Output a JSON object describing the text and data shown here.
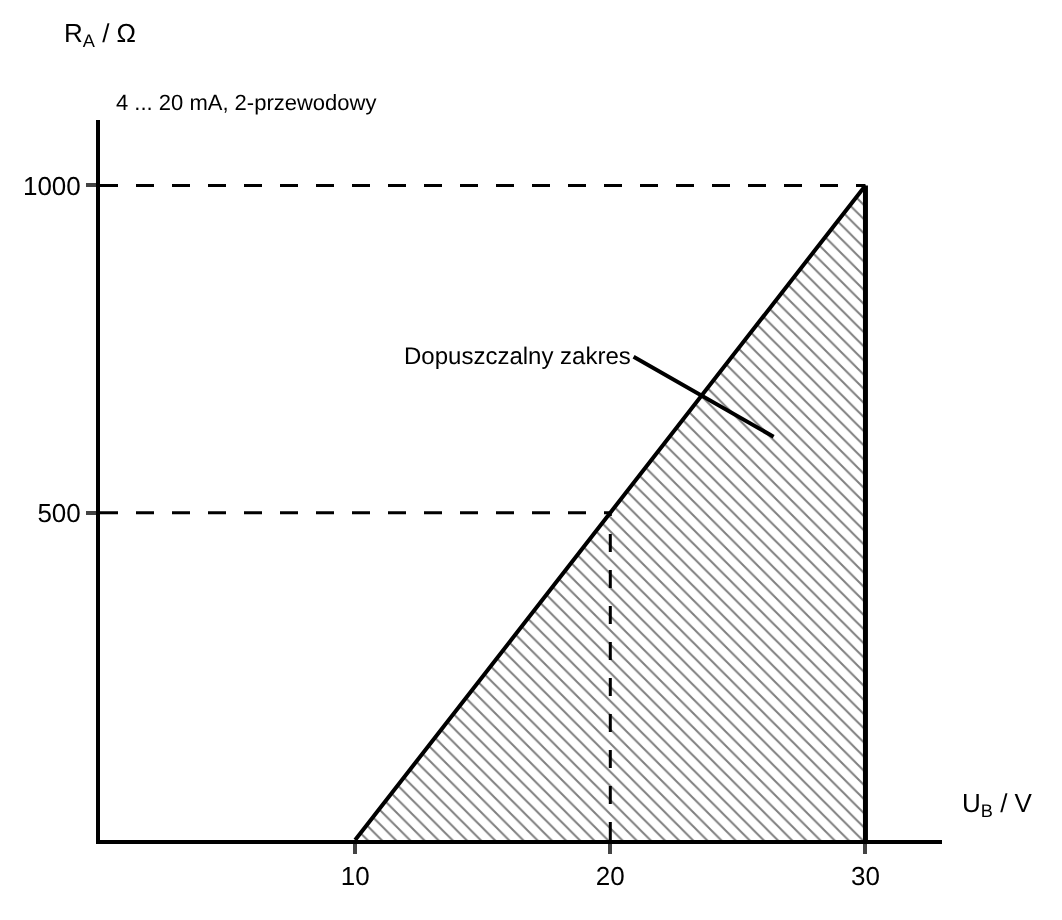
{
  "chart_data": {
    "type": "area",
    "x": [
      10,
      20,
      30
    ],
    "series": [
      {
        "color": "#000000",
        "values": [
          0,
          500,
          1000
        ]
      }
    ],
    "xlim": [
      0,
      33
    ],
    "ylim": [
      0,
      1100
    ],
    "xticks": [
      10,
      20,
      30
    ],
    "yticks": [
      500,
      1000
    ],
    "xlabel": "U$_{B}$ / V",
    "ylabel": "R$_{A}$ / Ω",
    "ref_lines": [
      {
        "axis": "y",
        "value": 1000,
        "line_style": "dashed"
      },
      {
        "axis": "y",
        "value": 500,
        "line_style": "dashed"
      },
      {
        "axis": "x",
        "value": 20,
        "line_style": "dashed"
      },
      {
        "axis": "x",
        "value": 30,
        "line_style": "solid"
      }
    ],
    "annotations": [
      "4 ... 20 mA, 2-przewodowy",
      "Dopuszczalny zakres"
    ]
  }
}
